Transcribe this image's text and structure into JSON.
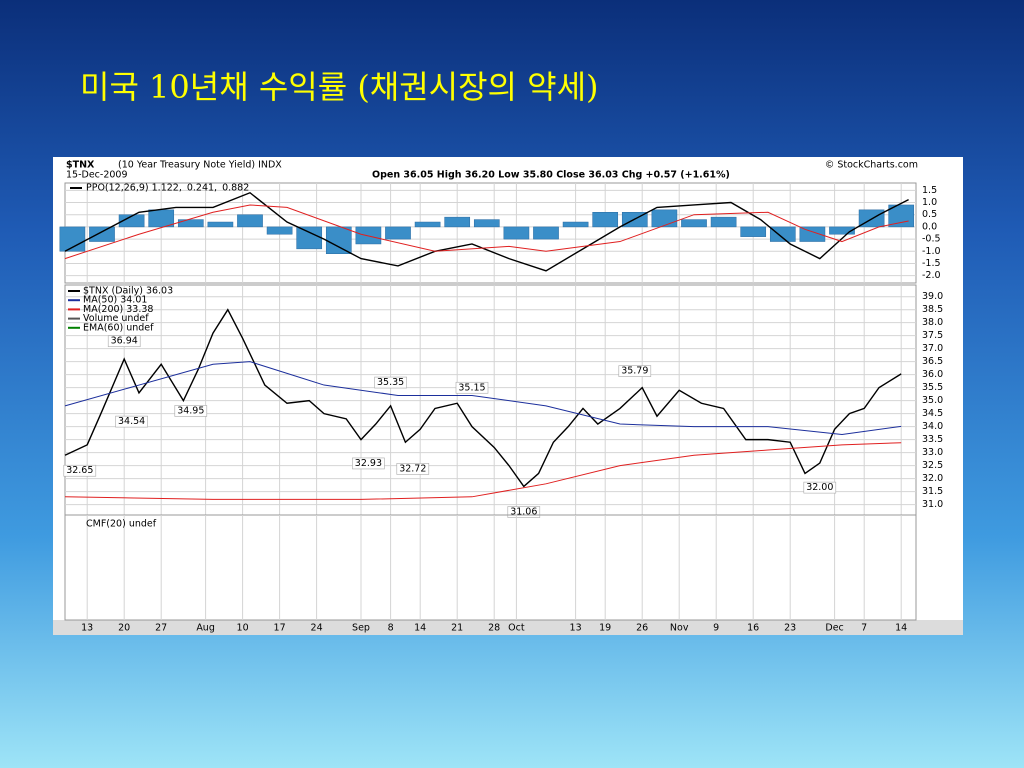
{
  "title": "미국 10년채 수익률 (채권시장의 약세)",
  "header": {
    "symbol": "$TNX",
    "description": "(10 Year Treasury Note Yield) INDX",
    "date": "15-Dec-2009",
    "quote": "Open 36.05 High 36.20 Low 35.80 Close 36.03 Chg +0.57 (+1.61%)",
    "source": "© StockCharts.com"
  },
  "chart_data": [
    {
      "type": "line",
      "grid": true,
      "ylim": [
        -2.3,
        1.8
      ],
      "yticks": [
        {
          "value": 1.5,
          "label": "1.5"
        },
        {
          "value": 1,
          "label": "1.0"
        },
        {
          "value": 0.5,
          "label": "0.5"
        },
        {
          "value": 0,
          "label": "0.0"
        },
        {
          "value": -0.5,
          "label": "-0.5"
        },
        {
          "value": -1,
          "label": "-1.0"
        },
        {
          "value": -1.5,
          "label": "-1.5"
        },
        {
          "value": -2,
          "label": "-2.0"
        }
      ],
      "series": [
        {
          "name": "PPO(12,26,9) 1.122,",
          "color": "#000000",
          "style": "line",
          "x": [
            0,
            5,
            10,
            15,
            20,
            25,
            30,
            35,
            40,
            45,
            50,
            55,
            60,
            65,
            70,
            75,
            80,
            85,
            90,
            94,
            98,
            102,
            106,
            110,
            114
          ],
          "values": [
            -1.0,
            -0.2,
            0.6,
            0.8,
            0.8,
            1.4,
            0.2,
            -0.5,
            -1.3,
            -1.6,
            -1.0,
            -0.7,
            -1.3,
            -1.8,
            -0.9,
            0.0,
            0.8,
            0.9,
            1.0,
            0.3,
            -0.7,
            -1.3,
            -0.2,
            0.5,
            1.12
          ]
        },
        {
          "name": "0.241,",
          "color": "#e02020",
          "style": "line",
          "x": [
            0,
            10,
            20,
            25,
            30,
            40,
            50,
            60,
            65,
            75,
            85,
            95,
            100,
            105,
            110,
            114
          ],
          "values": [
            -1.3,
            -0.3,
            0.6,
            0.9,
            0.8,
            -0.3,
            -1.0,
            -0.8,
            -1.0,
            -0.6,
            0.5,
            0.6,
            -0.1,
            -0.6,
            0.0,
            0.24
          ]
        },
        {
          "name": "0.882",
          "color": "#3a8ec8",
          "style": "bar",
          "x": [
            1,
            5,
            9,
            13,
            17,
            21,
            25,
            29,
            33,
            37,
            41,
            45,
            49,
            53,
            57,
            61,
            65,
            69,
            73,
            77,
            81,
            85,
            89,
            93,
            97,
            101,
            105,
            109,
            113
          ],
          "values": [
            -1.0,
            -0.6,
            0.5,
            0.7,
            0.3,
            0.2,
            0.5,
            -0.3,
            -0.9,
            -1.1,
            -0.7,
            -0.5,
            0.2,
            0.4,
            0.3,
            -0.5,
            -0.5,
            0.2,
            0.6,
            0.6,
            0.7,
            0.3,
            0.4,
            -0.4,
            -0.6,
            -0.6,
            -0.3,
            0.7,
            0.9
          ]
        }
      ]
    },
    {
      "type": "line",
      "grid": true,
      "ylim": [
        30.6,
        39.45
      ],
      "yticks": [
        {
          "value": 39,
          "label": "39.0"
        },
        {
          "value": 38.5,
          "label": "38.5"
        },
        {
          "value": 38,
          "label": "38.0"
        },
        {
          "value": 37.5,
          "label": "37.5"
        },
        {
          "value": 37,
          "label": "37.0"
        },
        {
          "value": 36.5,
          "label": "36.5"
        },
        {
          "value": 36,
          "label": "36.0"
        },
        {
          "value": 35.5,
          "label": "35.5"
        },
        {
          "value": 35,
          "label": "35.0"
        },
        {
          "value": 34.5,
          "label": "34.5"
        },
        {
          "value": 34,
          "label": "34.0"
        },
        {
          "value": 33.5,
          "label": "33.5"
        },
        {
          "value": 33,
          "label": "33.0"
        },
        {
          "value": 32.5,
          "label": "32.5"
        },
        {
          "value": 32,
          "label": "32.0"
        },
        {
          "value": 31.5,
          "label": "31.5"
        },
        {
          "value": 31,
          "label": "31.0"
        }
      ],
      "series": [
        {
          "name": "$TNX (Daily) 36.03",
          "color": "#000000",
          "style": "line",
          "x": [
            0,
            3,
            5,
            8,
            10,
            13,
            16,
            18,
            20,
            22,
            24,
            27,
            30,
            33,
            35,
            38,
            40,
            42,
            44,
            46,
            48,
            50,
            53,
            55,
            58,
            60,
            62,
            64,
            66,
            68,
            70,
            72,
            75,
            78,
            80,
            83,
            86,
            89,
            92,
            95,
            98,
            100,
            102,
            104,
            106,
            108,
            110,
            113
          ],
          "values": [
            32.9,
            33.3,
            34.6,
            36.6,
            35.3,
            36.4,
            35.0,
            36.2,
            37.6,
            38.5,
            37.4,
            35.6,
            34.9,
            35.0,
            34.5,
            34.3,
            33.5,
            34.1,
            34.8,
            33.4,
            33.9,
            34.7,
            34.9,
            34.0,
            33.2,
            32.5,
            31.7,
            32.2,
            33.4,
            34.0,
            34.7,
            34.1,
            34.7,
            35.5,
            34.4,
            35.4,
            34.9,
            34.7,
            33.5,
            33.5,
            33.4,
            32.2,
            32.6,
            33.9,
            34.5,
            34.7,
            35.5,
            36.03
          ]
        },
        {
          "name": "MA(50) 34.01",
          "color": "#1c2f9c",
          "style": "line",
          "x": [
            0,
            10,
            20,
            25,
            35,
            45,
            55,
            65,
            75,
            85,
            95,
            105,
            113
          ],
          "values": [
            34.8,
            35.6,
            36.4,
            36.5,
            35.6,
            35.2,
            35.2,
            34.8,
            34.1,
            34.0,
            34.0,
            33.7,
            34.01
          ]
        },
        {
          "name": "MA(200) 33.38",
          "color": "#e02020",
          "style": "line",
          "x": [
            0,
            20,
            40,
            55,
            65,
            75,
            85,
            95,
            105,
            113
          ],
          "values": [
            31.3,
            31.2,
            31.2,
            31.3,
            31.8,
            32.5,
            32.9,
            33.1,
            33.3,
            33.38
          ]
        }
      ],
      "legend_extra": [
        {
          "name": "Volume undef",
          "color": "#555555"
        },
        {
          "name": "EMA(60) undef",
          "color": "#008000"
        }
      ],
      "annotations": [
        {
          "x": 2,
          "value": 32.65,
          "label": "32.65"
        },
        {
          "x": 8,
          "value": 36.94,
          "label": "36.94"
        },
        {
          "x": 9,
          "value": 34.54,
          "label": "34.54"
        },
        {
          "x": 17,
          "value": 34.95,
          "label": "34.95"
        },
        {
          "x": 41,
          "value": 32.93,
          "label": "32.93"
        },
        {
          "x": 44,
          "value": 35.35,
          "label": "35.35"
        },
        {
          "x": 47,
          "value": 32.72,
          "label": "32.72"
        },
        {
          "x": 55,
          "value": 35.15,
          "label": "35.15"
        },
        {
          "x": 62,
          "value": 31.06,
          "label": "31.06"
        },
        {
          "x": 77,
          "value": 35.79,
          "label": "35.79"
        },
        {
          "x": 102,
          "value": 32,
          "label": "32.00"
        }
      ]
    },
    {
      "type": "line",
      "grid": true,
      "legend_text": "CMF(20) undef",
      "xlim": [
        0,
        115
      ],
      "xticks": [
        {
          "value": 3,
          "label": "13"
        },
        {
          "value": 8,
          "label": "20"
        },
        {
          "value": 13,
          "label": "27"
        },
        {
          "value": 19,
          "label": "Aug"
        },
        {
          "value": 24,
          "label": "10"
        },
        {
          "value": 29,
          "label": "17"
        },
        {
          "value": 34,
          "label": "24"
        },
        {
          "value": 40,
          "label": "Sep"
        },
        {
          "value": 44,
          "label": "8"
        },
        {
          "value": 48,
          "label": "14"
        },
        {
          "value": 53,
          "label": "21"
        },
        {
          "value": 58,
          "label": "28"
        },
        {
          "value": 61,
          "label": "Oct"
        },
        {
          "value": 69,
          "label": "13"
        },
        {
          "value": 73,
          "label": "19"
        },
        {
          "value": 78,
          "label": "26"
        },
        {
          "value": 83,
          "label": "Nov"
        },
        {
          "value": 88,
          "label": "9"
        },
        {
          "value": 93,
          "label": "16"
        },
        {
          "value": 98,
          "label": "23"
        },
        {
          "value": 104,
          "label": "Dec"
        },
        {
          "value": 108,
          "label": "7"
        },
        {
          "value": 113,
          "label": "14"
        }
      ]
    }
  ]
}
